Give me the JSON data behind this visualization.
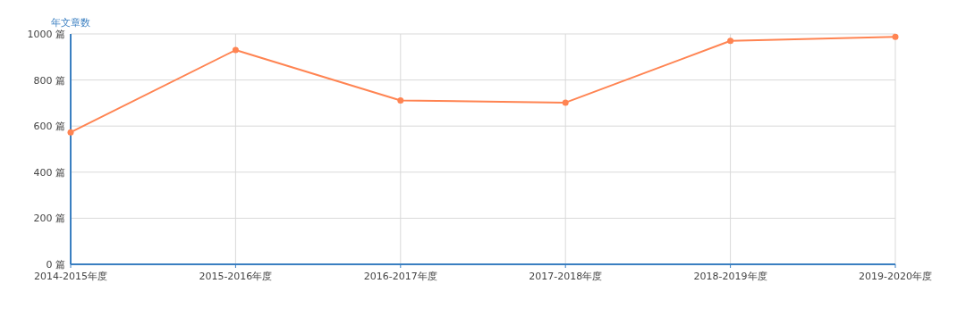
{
  "chart_data": {
    "type": "line",
    "ylabel": "年文章数",
    "categories": [
      "2014-2015年度",
      "2015-2016年度",
      "2016-2017年度",
      "2017-2018年度",
      "2018-2019年度",
      "2019-2020年度"
    ],
    "series": [
      {
        "color": "#ff8452",
        "values": [
          573,
          930,
          711,
          702,
          970,
          987
        ]
      }
    ],
    "ylim": [
      0,
      1000
    ],
    "yticks": [
      {
        "value": 0,
        "label": "0 篇"
      },
      {
        "value": 200,
        "label": "200 篇"
      },
      {
        "value": 400,
        "label": "400 篇"
      },
      {
        "value": 600,
        "label": "600 篇"
      },
      {
        "value": 800,
        "label": "800 篇"
      },
      {
        "value": 1000,
        "label": "1000 篇"
      }
    ],
    "grid": true,
    "marker": "circle",
    "line_style": "solid"
  }
}
